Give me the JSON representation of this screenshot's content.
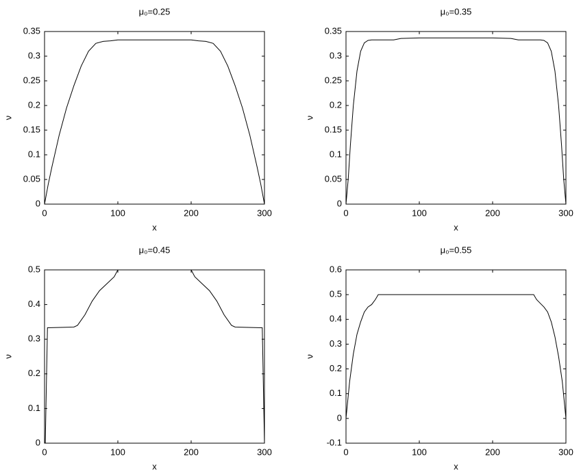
{
  "chart_data": [
    {
      "type": "line",
      "title": "μ₀=0.25",
      "xlabel": "x",
      "ylabel": "ν",
      "color": "#000000",
      "x": [
        0,
        5,
        10,
        20,
        30,
        40,
        50,
        60,
        70,
        80,
        90,
        100,
        200,
        210,
        220,
        230,
        240,
        250,
        260,
        270,
        280,
        290,
        295,
        300
      ],
      "values": [
        0,
        0.04,
        0.075,
        0.14,
        0.195,
        0.24,
        0.28,
        0.31,
        0.326,
        0.33,
        0.331,
        0.333,
        0.333,
        0.331,
        0.33,
        0.326,
        0.31,
        0.28,
        0.24,
        0.195,
        0.14,
        0.075,
        0.04,
        0
      ],
      "xlim": [
        0,
        300
      ],
      "xticks": [
        0,
        100,
        200,
        300
      ],
      "ylim": [
        0,
        0.35
      ],
      "yticks": [
        0,
        0.05,
        0.1,
        0.15,
        0.2,
        0.25,
        0.3,
        0.35
      ],
      "grid": false
    },
    {
      "type": "line",
      "title": "μ₀=0.35",
      "xlabel": "x",
      "ylabel": "ν",
      "color": "#000000",
      "x": [
        0,
        3,
        6,
        10,
        15,
        20,
        25,
        30,
        35,
        65,
        75,
        100,
        200,
        225,
        235,
        265,
        270,
        275,
        280,
        285,
        290,
        294,
        297,
        300
      ],
      "values": [
        0,
        0.05,
        0.12,
        0.2,
        0.27,
        0.31,
        0.327,
        0.332,
        0.333,
        0.333,
        0.336,
        0.337,
        0.337,
        0.336,
        0.333,
        0.333,
        0.332,
        0.327,
        0.31,
        0.27,
        0.2,
        0.12,
        0.05,
        0
      ],
      "xlim": [
        0,
        300
      ],
      "xticks": [
        0,
        100,
        200,
        300
      ],
      "ylim": [
        0,
        0.35
      ],
      "yticks": [
        0,
        0.05,
        0.1,
        0.15,
        0.2,
        0.25,
        0.3,
        0.35
      ],
      "grid": false
    },
    {
      "type": "line",
      "title": "μ₀=0.45",
      "xlabel": "x",
      "ylabel": "ν",
      "color": "#000000",
      "x": [
        0,
        1,
        4,
        40,
        45,
        55,
        65,
        75,
        85,
        95,
        100,
        200,
        205,
        215,
        225,
        235,
        245,
        255,
        260,
        297,
        300
      ],
      "values": [
        0,
        0,
        0.333,
        0.335,
        0.34,
        0.37,
        0.41,
        0.44,
        0.46,
        0.48,
        0.5,
        0.5,
        0.48,
        0.46,
        0.44,
        0.41,
        0.37,
        0.34,
        0.335,
        0.333,
        0
      ],
      "xlim": [
        0,
        300
      ],
      "xticks": [
        0,
        100,
        200,
        300
      ],
      "ylim": [
        0,
        0.5
      ],
      "yticks": [
        0,
        0.1,
        0.2,
        0.3,
        0.4,
        0.5
      ],
      "grid": false
    },
    {
      "type": "line",
      "title": "μ₀=0.55",
      "xlabel": "x",
      "ylabel": "ν",
      "color": "#000000",
      "x": [
        0,
        5,
        10,
        15,
        20,
        25,
        30,
        35,
        40,
        44,
        256,
        260,
        265,
        270,
        275,
        280,
        285,
        290,
        295,
        300
      ],
      "values": [
        0,
        0.15,
        0.26,
        0.34,
        0.39,
        0.43,
        0.45,
        0.46,
        0.48,
        0.5,
        0.5,
        0.48,
        0.465,
        0.45,
        0.43,
        0.39,
        0.33,
        0.25,
        0.15,
        0
      ],
      "xlim": [
        0,
        300
      ],
      "xticks": [
        0,
        100,
        200,
        300
      ],
      "ylim": [
        -0.1,
        0.6
      ],
      "yticks": [
        -0.1,
        0,
        0.1,
        0.2,
        0.3,
        0.4,
        0.5,
        0.6
      ],
      "grid": false
    }
  ]
}
